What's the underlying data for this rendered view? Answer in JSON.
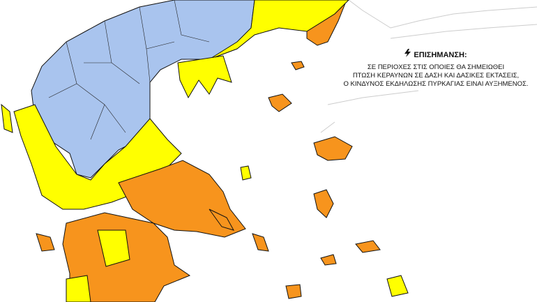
{
  "notice": {
    "icon": "lightning-bolt-icon",
    "title": "ΕΠΙΣΗΜΑΝΣΗ:",
    "lines": [
      "ΣΕ ΠΕΡΙΟΧΕΣ ΣΤΙΣ ΟΠΟΙΕΣ ΘΑ ΣΗΜΕΙΩΘΕΙ",
      "ΠΤΩΣΗ ΚΕΡΑΥΝΩΝ ΣΕ ΔΑΣΗ ΚΑΙ ΔΑΣΙΚΕΣ ΕΚΤΑΣΕΙΣ,",
      "Ο ΚΙΝΔΥΝΟΣ ΕΚΔΗΛΩΣΗΣ ΠΥΡΚΑΓΙΑΣ ΕΙΝΑΙ ΑΥΞΗΜΕΝΟΣ."
    ]
  },
  "legend_colors": {
    "low_risk": "#a9c4ee",
    "moderate_risk": "#ffff00",
    "high_risk": "#f7941d"
  }
}
